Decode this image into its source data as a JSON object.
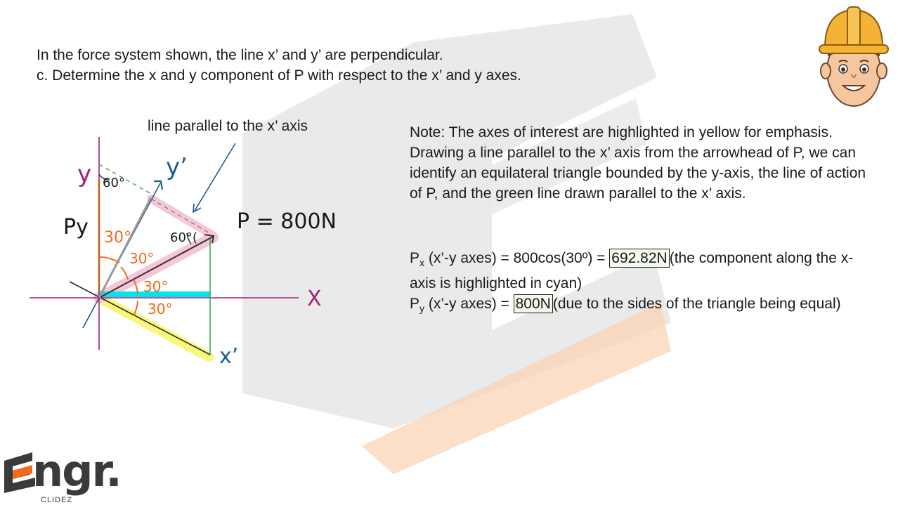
{
  "question": {
    "line1": "In the force system shown, the line x’ and y’  are perpendicular.",
    "line2": "c. Determine the x and y component of P with respect to the x’ and y axes."
  },
  "diagram": {
    "callout": "line parallel to the x’ axis",
    "label_y": "y",
    "label_y_prime": "y’",
    "label_x": "X",
    "label_x_prime": "x’",
    "label_py": "Py",
    "label_p": "P = 800N",
    "angle_60_top": "60°",
    "angle_60_right": "60°(",
    "angle_30_a": "30°",
    "angle_30_b": "30°",
    "angle_30_c": "30°",
    "angle_30_d": "30°",
    "colors": {
      "highlight_yellow": "#f7f77a",
      "highlight_pink": "#f5c6d8",
      "highlight_cyan": "#00e5ee",
      "axis_magenta": "#a0207a",
      "axis_blue": "#1f5d8c",
      "annotation_orange": "#ee6a1a",
      "line_green": "#3aa858"
    }
  },
  "note": "Note: The axes of interest are highlighted in yellow for emphasis. Drawing a line parallel to the x’ axis from the arrowhead of P, we can identify an equilateral triangle bounded by the y-axis, the line of action of P, and the green line drawn parallel to the x’ axis.",
  "results": {
    "px": {
      "symbol": "P",
      "sub": "x",
      "expr": " (x’-y axes) = 800cos(30º) = ",
      "answer": "692.82N",
      "rest": "(the component along the x-axis is highlighted in cyan)"
    },
    "py": {
      "symbol": "P",
      "sub": "y",
      "expr": " (x’-y axes) = ",
      "answer": "800N",
      "rest": "(due to the sides of the triangle being equal)"
    }
  },
  "logo": {
    "text": "ngr.",
    "sub": "CLIDEZ"
  }
}
